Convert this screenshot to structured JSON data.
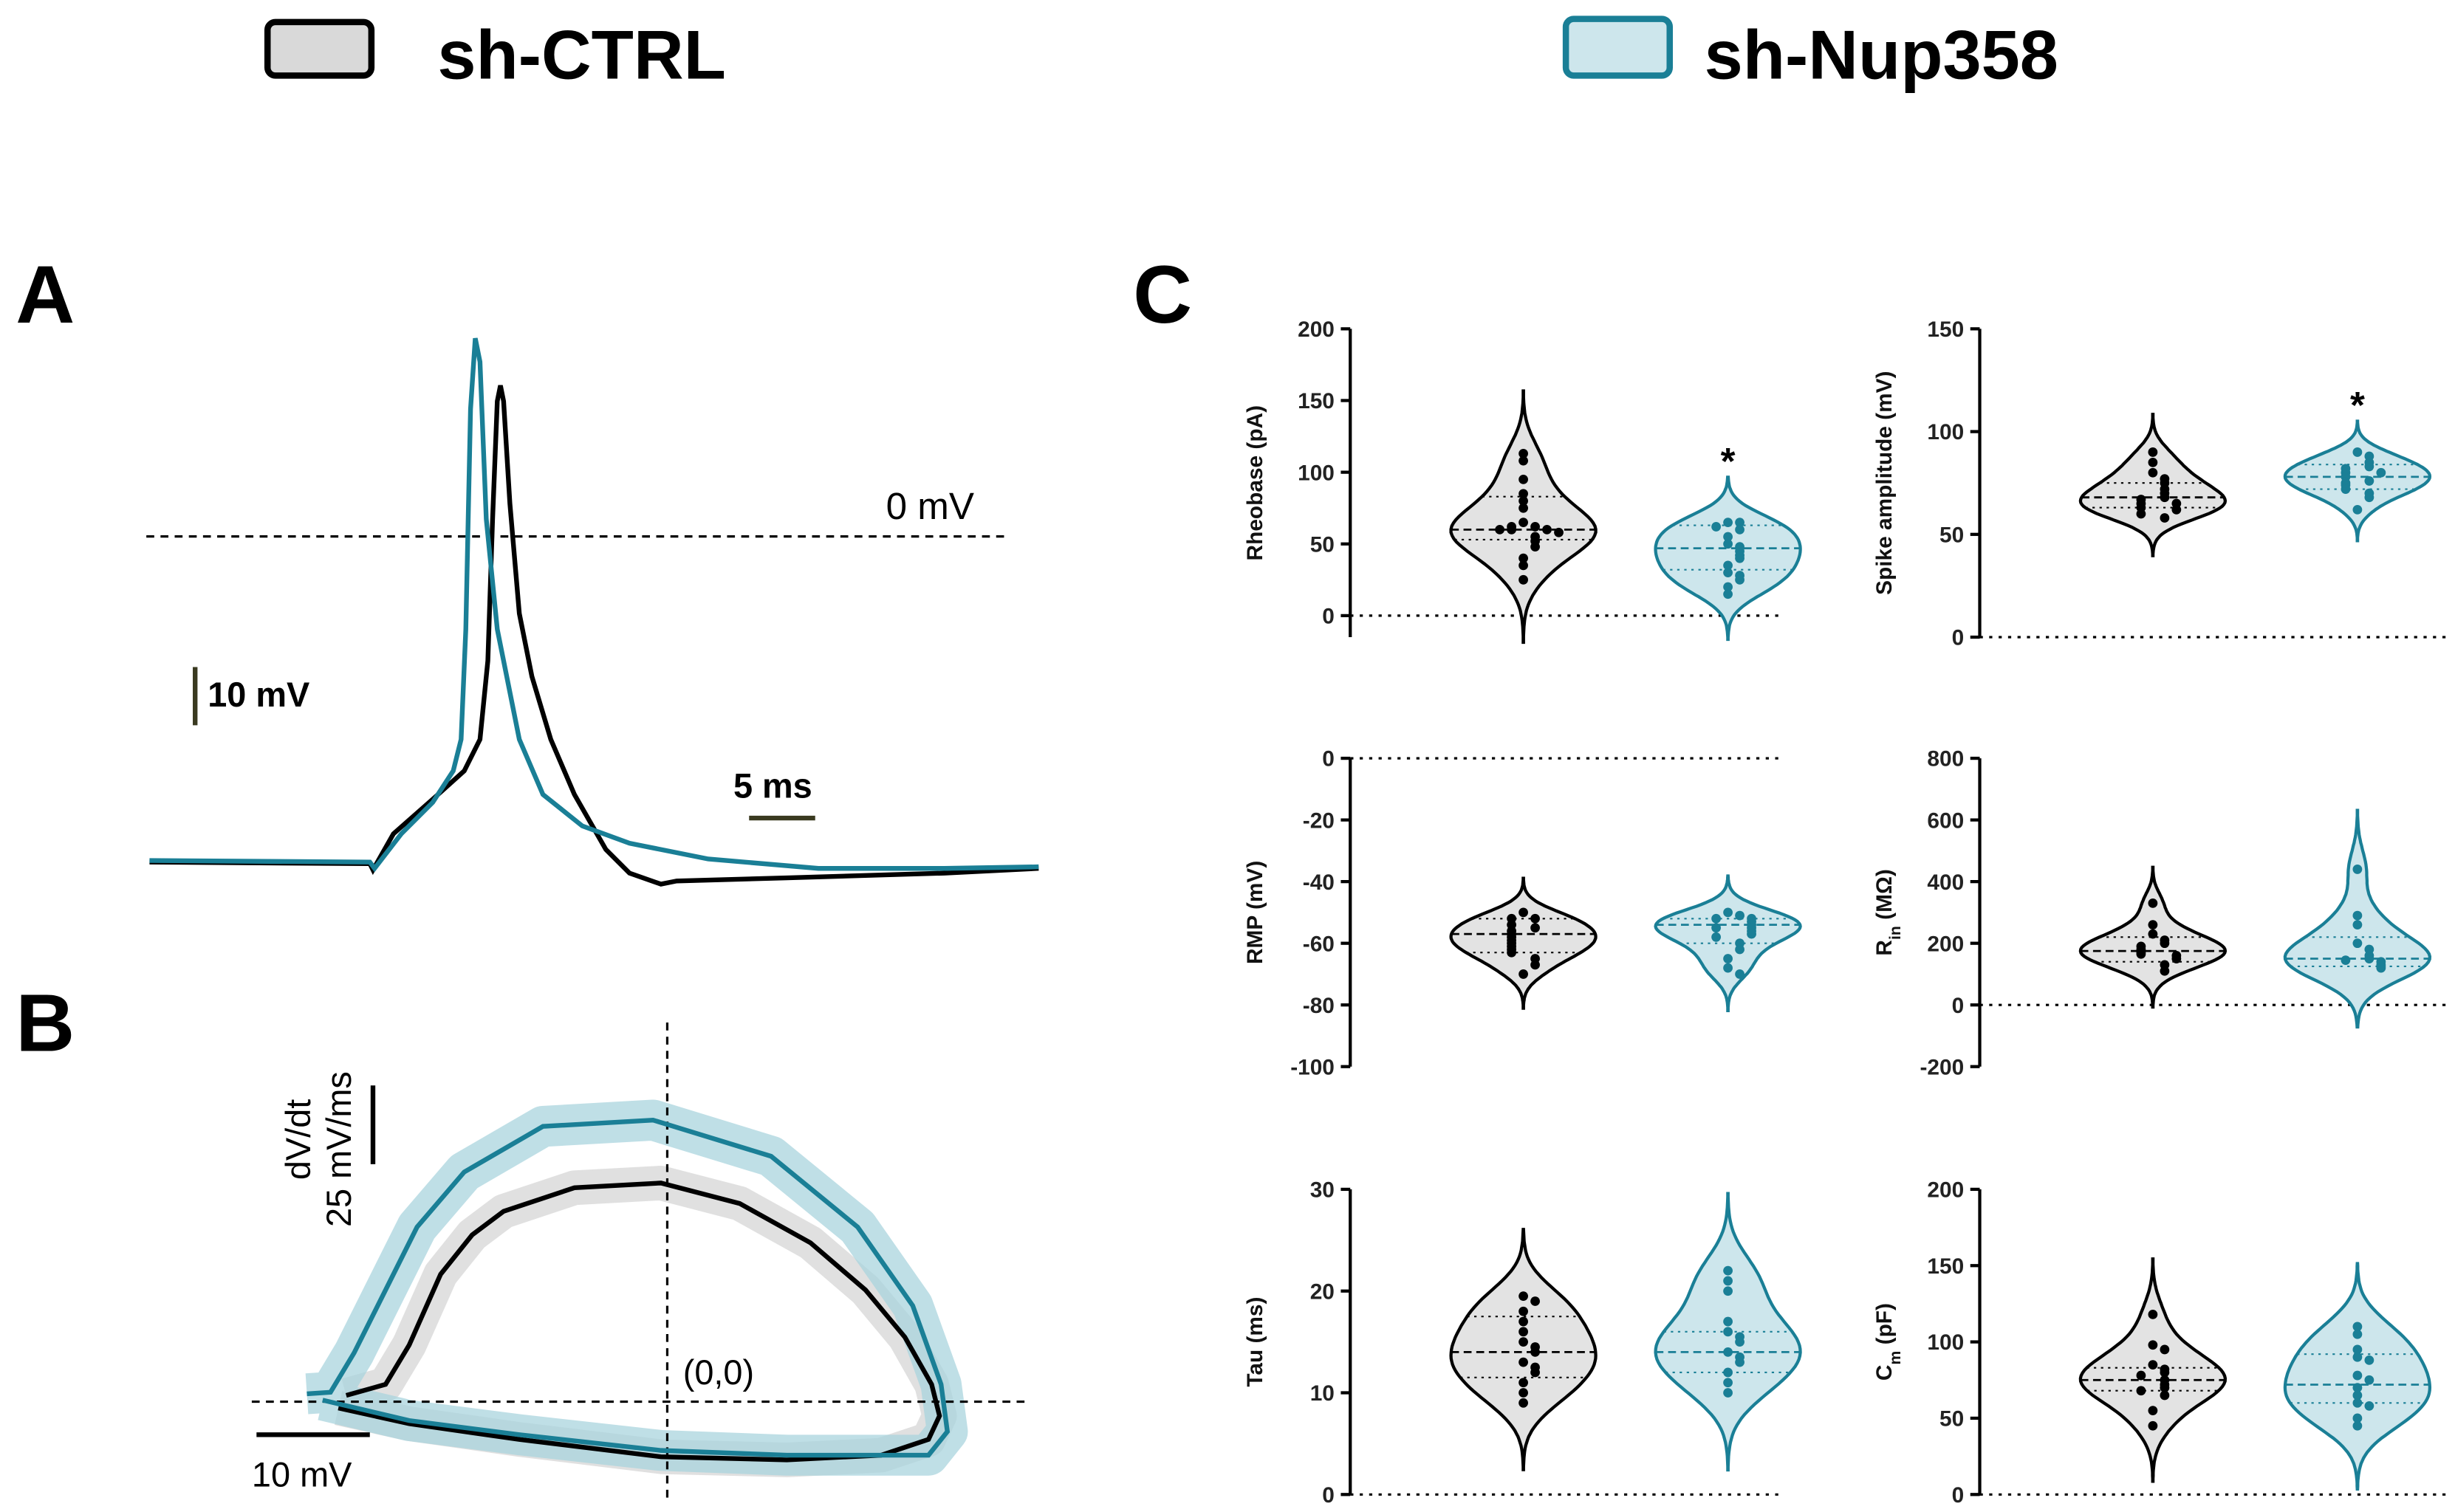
{
  "legend": [
    {
      "name": "sh-CTRL",
      "color": "#000000",
      "fill": "#d9d9d9"
    },
    {
      "name": "sh-Nup358",
      "color": "#1a7f96",
      "fill": "#cde6ec"
    }
  ],
  "panels": [
    "A",
    "B",
    "C"
  ],
  "panel_A": {
    "zero_label": "0 mV",
    "v_scale": "10 mV",
    "t_scale": "5 ms"
  },
  "panel_B": {
    "y_label": "dV/dt",
    "y_scale": "25 mV/ms",
    "origin": "(0,0)",
    "x_scale": "10 mV"
  },
  "chart_data": [
    {
      "type": "violin",
      "ylabel": [
        {
          "text": "Rheobase (pA)"
        }
      ],
      "ylim": [
        -15,
        200
      ],
      "yticks": [
        0,
        50,
        100,
        150,
        200
      ],
      "annotation": "*",
      "series": [
        {
          "color": "#000000",
          "fill": "#e3e3e3",
          "median": 60,
          "q1": 53,
          "q3": 83,
          "points": [
            113,
            108,
            95,
            85,
            80,
            75,
            65,
            62,
            62,
            60,
            60,
            60,
            58,
            55,
            52,
            48,
            40,
            35,
            25
          ]
        },
        {
          "color": "#1a7f96",
          "fill": "#cde6ec",
          "median": 47,
          "q1": 32,
          "q3": 63,
          "points": [
            65,
            65,
            62,
            60,
            55,
            50,
            48,
            45,
            42,
            40,
            35,
            30,
            28,
            25,
            20,
            15
          ]
        }
      ]
    },
    {
      "type": "violin",
      "ylabel": [
        {
          "text": "Spike amplitude (mV)"
        }
      ],
      "ylim": [
        0,
        150
      ],
      "yticks": [
        0,
        50,
        100,
        150
      ],
      "annotation": "*",
      "series": [
        {
          "color": "#000000",
          "fill": "#e3e3e3",
          "median": 68,
          "q1": 63,
          "q3": 75,
          "points": [
            90,
            85,
            80,
            77,
            75,
            72,
            70,
            68,
            67,
            65,
            65,
            63,
            62,
            60,
            58
          ]
        },
        {
          "color": "#1a7f96",
          "fill": "#cde6ec",
          "median": 78,
          "q1": 72,
          "q3": 84,
          "points": [
            90,
            88,
            85,
            83,
            82,
            80,
            80,
            78,
            76,
            75,
            74,
            72,
            70,
            68,
            62
          ]
        }
      ]
    },
    {
      "type": "violin",
      "ylabel": [
        {
          "text": "RMP (mV)"
        }
      ],
      "ylim": [
        -100,
        0
      ],
      "yticks": [
        -100,
        -80,
        -60,
        -40,
        -20,
        0
      ],
      "series": [
        {
          "color": "#000000",
          "fill": "#e3e3e3",
          "median": -57,
          "q1": -63,
          "q3": -52,
          "points": [
            -50,
            -52,
            -52,
            -54,
            -55,
            -56,
            -57,
            -58,
            -59,
            -60,
            -61,
            -62,
            -63,
            -65,
            -67,
            -70
          ]
        },
        {
          "color": "#1a7f96",
          "fill": "#cde6ec",
          "median": -54,
          "q1": -60,
          "q3": -52,
          "points": [
            -50,
            -51,
            -52,
            -52,
            -53,
            -54,
            -55,
            -55,
            -56,
            -57,
            -58,
            -60,
            -62,
            -65,
            -68,
            -70
          ]
        }
      ]
    },
    {
      "type": "violin",
      "ylabel": [
        {
          "text": "R"
        },
        {
          "text": "in",
          "sub": true
        },
        {
          "text": " (MΩ)"
        }
      ],
      "ylim": [
        -200,
        800
      ],
      "yticks": [
        -200,
        0,
        200,
        400,
        600,
        800
      ],
      "series": [
        {
          "color": "#000000",
          "fill": "#e3e3e3",
          "median": 175,
          "q1": 140,
          "q3": 220,
          "points": [
            330,
            260,
            230,
            210,
            200,
            190,
            180,
            170,
            165,
            160,
            150,
            130,
            110
          ]
        },
        {
          "color": "#1a7f96",
          "fill": "#cde6ec",
          "median": 150,
          "q1": 125,
          "q3": 220,
          "points": [
            440,
            290,
            260,
            200,
            180,
            160,
            150,
            145,
            140,
            130,
            125,
            120
          ]
        }
      ]
    },
    {
      "type": "violin",
      "ylabel": [
        {
          "text": "Tau (ms)"
        }
      ],
      "ylim": [
        0,
        30
      ],
      "yticks": [
        0,
        10,
        20,
        30
      ],
      "series": [
        {
          "color": "#000000",
          "fill": "#e3e3e3",
          "median": 14,
          "q1": 11.5,
          "q3": 17.5,
          "points": [
            19.5,
            19,
            18,
            17,
            16,
            15,
            14.5,
            14,
            13,
            12.5,
            12,
            11,
            10,
            9
          ]
        },
        {
          "color": "#1a7f96",
          "fill": "#cde6ec",
          "median": 14,
          "q1": 12,
          "q3": 16,
          "points": [
            22,
            21,
            20,
            17,
            16,
            15.5,
            15,
            14,
            13.5,
            13,
            12,
            11,
            10
          ]
        }
      ]
    },
    {
      "type": "violin",
      "ylabel": [
        {
          "text": "C"
        },
        {
          "text": "m",
          "sub": true
        },
        {
          "text": " (pF)"
        }
      ],
      "ylim": [
        0,
        200
      ],
      "yticks": [
        0,
        50,
        100,
        150,
        200
      ],
      "series": [
        {
          "color": "#000000",
          "fill": "#e3e3e3",
          "median": 75,
          "q1": 68,
          "q3": 83,
          "points": [
            118,
            98,
            95,
            85,
            82,
            80,
            78,
            75,
            72,
            70,
            68,
            65,
            55,
            45
          ]
        },
        {
          "color": "#1a7f96",
          "fill": "#cde6ec",
          "median": 72,
          "q1": 60,
          "q3": 92,
          "points": [
            110,
            105,
            95,
            90,
            88,
            78,
            75,
            70,
            65,
            60,
            58,
            50,
            45
          ]
        }
      ]
    }
  ]
}
